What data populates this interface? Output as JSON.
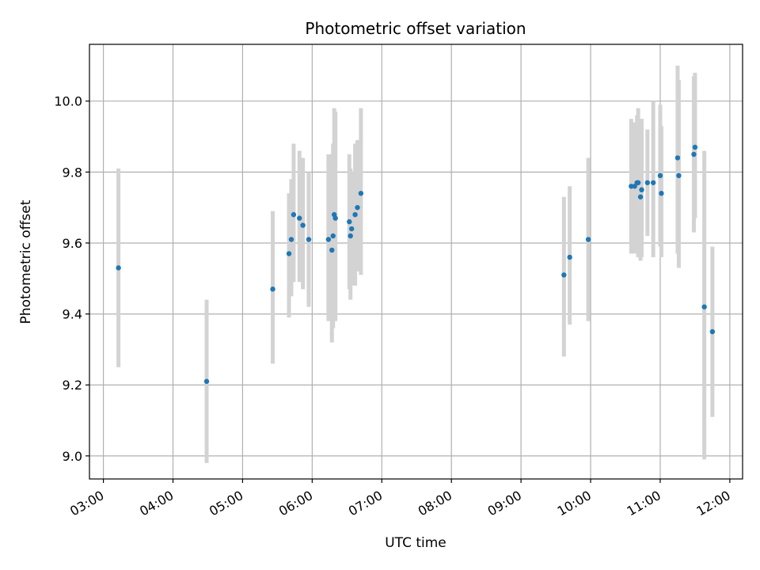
{
  "chart_data": {
    "type": "scatter",
    "title": "Photometric offset variation",
    "xlabel": "UTC time",
    "ylabel": "Photometric offset",
    "x_ticks": [
      "03:00",
      "04:00",
      "05:00",
      "06:00",
      "07:00",
      "08:00",
      "09:00",
      "10:00",
      "11:00",
      "12:00"
    ],
    "y_ticks": [
      "9.0",
      "9.2",
      "9.4",
      "9.6",
      "9.8",
      "10.0"
    ],
    "xlim": [
      "02:48",
      "12:11"
    ],
    "ylim": [
      8.935,
      10.16
    ],
    "grid": true,
    "colors": {
      "points": "#1f77b4",
      "error_bars": "#d3d3d3",
      "grid": "#b0b0b0"
    },
    "points": [
      {
        "t": "03:13",
        "y": 9.53,
        "err_low": 9.25,
        "err_high": 9.81
      },
      {
        "t": "04:29",
        "y": 9.21,
        "err_low": 8.98,
        "err_high": 9.44
      },
      {
        "t": "05:26",
        "y": 9.47,
        "err_low": 9.26,
        "err_high": 9.69
      },
      {
        "t": "05:40",
        "y": 9.57,
        "err_low": 9.39,
        "err_high": 9.74
      },
      {
        "t": "05:42",
        "y": 9.61,
        "err_low": 9.45,
        "err_high": 9.78
      },
      {
        "t": "05:44",
        "y": 9.68,
        "err_low": 9.49,
        "err_high": 9.88
      },
      {
        "t": "05:49",
        "y": 9.67,
        "err_low": 9.49,
        "err_high": 9.86
      },
      {
        "t": "05:52",
        "y": 9.65,
        "err_low": 9.47,
        "err_high": 9.84
      },
      {
        "t": "05:57",
        "y": 9.61,
        "err_low": 9.42,
        "err_high": 9.8
      },
      {
        "t": "06:14",
        "y": 9.61,
        "err_low": 9.38,
        "err_high": 9.85
      },
      {
        "t": "06:17",
        "y": 9.58,
        "err_low": 9.32,
        "err_high": 9.85
      },
      {
        "t": "06:18",
        "y": 9.62,
        "err_low": 9.36,
        "err_high": 9.88
      },
      {
        "t": "06:19",
        "y": 9.68,
        "err_low": 9.38,
        "err_high": 9.98
      },
      {
        "t": "06:20",
        "y": 9.67,
        "err_low": 9.38,
        "err_high": 9.97
      },
      {
        "t": "06:32",
        "y": 9.66,
        "err_low": 9.47,
        "err_high": 9.85
      },
      {
        "t": "06:33",
        "y": 9.62,
        "err_low": 9.44,
        "err_high": 9.81
      },
      {
        "t": "06:34",
        "y": 9.64,
        "err_low": 9.48,
        "err_high": 9.8
      },
      {
        "t": "06:37",
        "y": 9.68,
        "err_low": 9.48,
        "err_high": 9.88
      },
      {
        "t": "06:39",
        "y": 9.7,
        "err_low": 9.52,
        "err_high": 9.89
      },
      {
        "t": "06:42",
        "y": 9.74,
        "err_low": 9.51,
        "err_high": 9.98
      },
      {
        "t": "09:37",
        "y": 9.51,
        "err_low": 9.28,
        "err_high": 9.73
      },
      {
        "t": "09:42",
        "y": 9.56,
        "err_low": 9.37,
        "err_high": 9.76
      },
      {
        "t": "09:58",
        "y": 9.61,
        "err_low": 9.38,
        "err_high": 9.84
      },
      {
        "t": "10:35",
        "y": 9.76,
        "err_low": 9.57,
        "err_high": 9.95
      },
      {
        "t": "10:38",
        "y": 9.76,
        "err_low": 9.57,
        "err_high": 9.94
      },
      {
        "t": "10:40",
        "y": 9.77,
        "err_low": 9.58,
        "err_high": 9.96
      },
      {
        "t": "10:41",
        "y": 9.77,
        "err_low": 9.56,
        "err_high": 9.98
      },
      {
        "t": "10:43",
        "y": 9.73,
        "err_low": 9.55,
        "err_high": 9.92
      },
      {
        "t": "10:44",
        "y": 9.75,
        "err_low": 9.56,
        "err_high": 9.95
      },
      {
        "t": "10:49",
        "y": 9.77,
        "err_low": 9.62,
        "err_high": 9.92
      },
      {
        "t": "10:54",
        "y": 9.77,
        "err_low": 9.56,
        "err_high": 10.0
      },
      {
        "t": "11:00",
        "y": 9.79,
        "err_low": 9.59,
        "err_high": 9.99
      },
      {
        "t": "11:01",
        "y": 9.74,
        "err_low": 9.56,
        "err_high": 9.93
      },
      {
        "t": "11:15",
        "y": 9.84,
        "err_low": 9.57,
        "err_high": 10.1
      },
      {
        "t": "11:16",
        "y": 9.79,
        "err_low": 9.53,
        "err_high": 10.06
      },
      {
        "t": "11:29",
        "y": 9.85,
        "err_low": 9.63,
        "err_high": 10.07
      },
      {
        "t": "11:30",
        "y": 9.87,
        "err_low": 9.67,
        "err_high": 10.08
      },
      {
        "t": "11:38",
        "y": 9.42,
        "err_low": 8.99,
        "err_high": 9.86
      },
      {
        "t": "11:45",
        "y": 9.35,
        "err_low": 9.11,
        "err_high": 9.59
      }
    ]
  }
}
